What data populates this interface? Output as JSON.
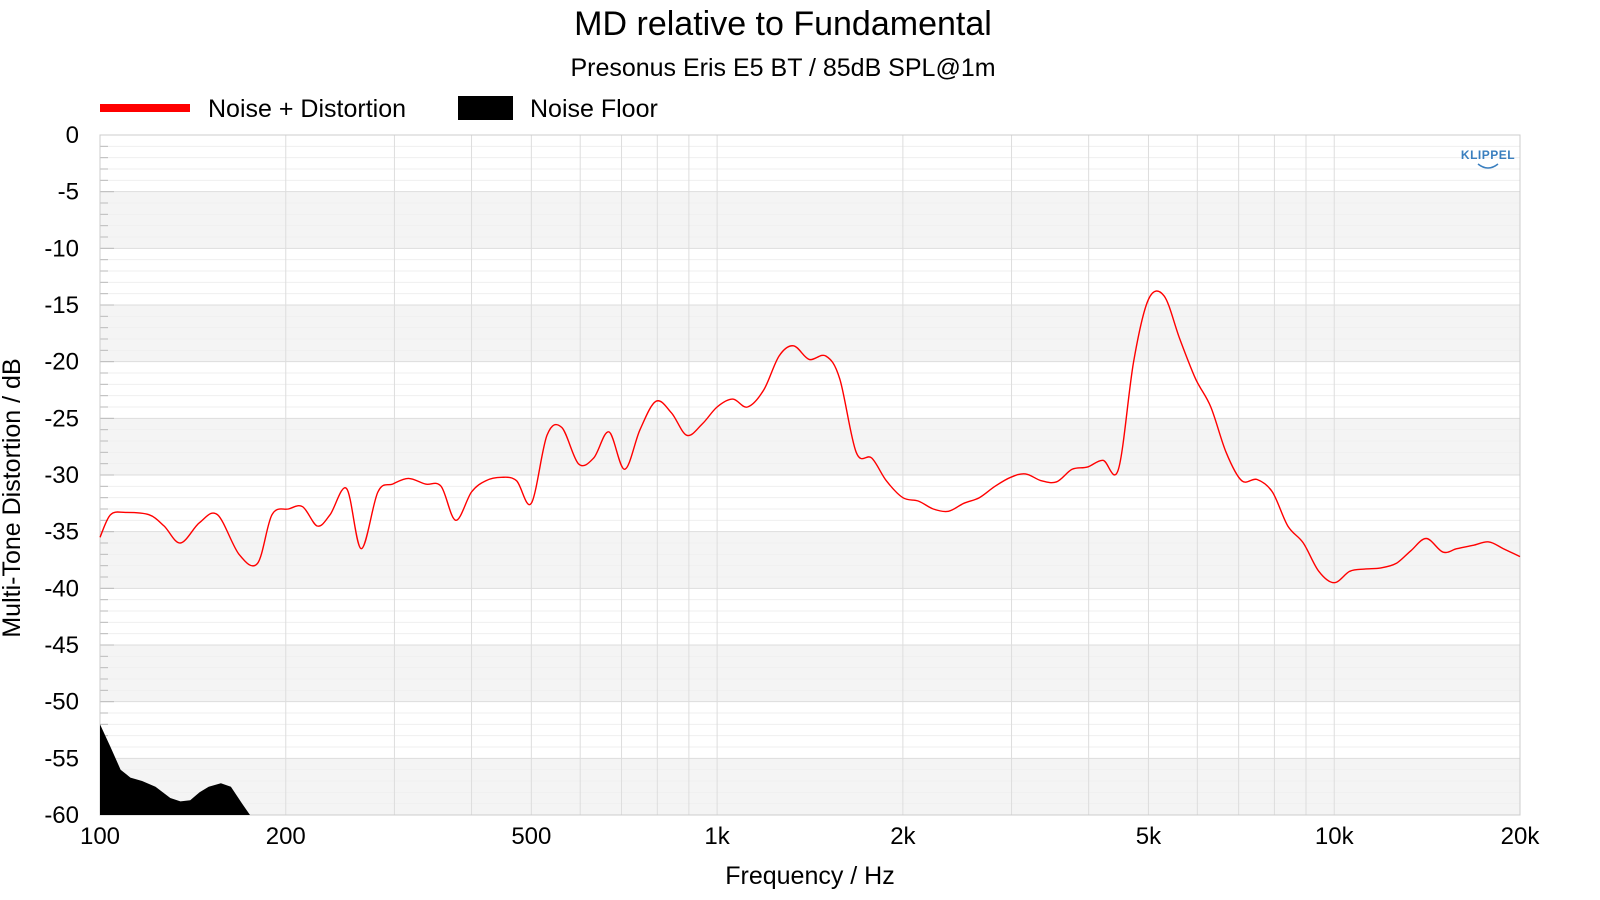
{
  "chart_data": {
    "type": "line",
    "title": "MD relative to Fundamental",
    "subtitle": "Presonus Eris E5 BT / 85dB SPL@1m",
    "xlabel": "Frequency / Hz",
    "ylabel": "Multi-Tone Distortion / dB",
    "x_scale": "log",
    "xlim": [
      100,
      20000
    ],
    "ylim": [
      -60,
      0
    ],
    "x_ticks": [
      100,
      200,
      500,
      1000,
      2000,
      5000,
      10000,
      20000
    ],
    "x_tick_labels": [
      "100",
      "200",
      "500",
      "1k",
      "2k",
      "5k",
      "10k",
      "20k"
    ],
    "y_ticks": [
      0,
      -5,
      -10,
      -15,
      -20,
      -25,
      -30,
      -35,
      -40,
      -45,
      -50,
      -55,
      -60
    ],
    "y_tick_labels": [
      "0",
      "-5",
      "-10",
      "-15",
      "-20",
      "-25",
      "-30",
      "-35",
      "-40",
      "-45",
      "-50",
      "-55",
      "-60"
    ],
    "grid": true,
    "legend_position": "top-left",
    "logo_text": "KLIPPEL",
    "colors": {
      "noise_distortion": "#ff0000",
      "noise_floor": "#000000",
      "band": "#f4f4f4",
      "grid": "#dddddd"
    },
    "series": [
      {
        "name": "Noise + Distortion",
        "type": "line",
        "x": [
          100,
          104,
          110,
          120,
          127,
          135,
          145,
          155,
          168,
          180,
          190,
          202,
          213,
          225,
          236,
          251,
          265,
          282,
          298,
          316,
          337,
          357,
          377,
          400,
          422,
          447,
          473,
          500,
          530,
          560,
          596,
          631,
          668,
          708,
          750,
          796,
          843,
          893,
          946,
          1000,
          1060,
          1120,
          1190,
          1260,
          1330,
          1410,
          1500,
          1580,
          1680,
          1780,
          1880,
          2000,
          2120,
          2240,
          2370,
          2510,
          2660,
          2820,
          2990,
          3160,
          3350,
          3550,
          3760,
          3980,
          4220,
          4470,
          4730,
          5000,
          5300,
          5620,
          5960,
          6310,
          6680,
          7080,
          7500,
          7940,
          8410,
          8910,
          9440,
          10000,
          10600,
          11200,
          11900,
          12600,
          13300,
          14100,
          15000,
          15800,
          16800,
          17800,
          18800,
          20000
        ],
        "y": [
          -35.5,
          -33.5,
          -33.3,
          -33.5,
          -34.5,
          -36,
          -34.2,
          -33.5,
          -37,
          -37.8,
          -33.5,
          -33,
          -32.8,
          -34.5,
          -33.5,
          -31.2,
          -36.5,
          -31.5,
          -30.8,
          -30.3,
          -30.8,
          -31,
          -34,
          -31.5,
          -30.5,
          -30.2,
          -30.5,
          -32.5,
          -26.5,
          -25.8,
          -29,
          -28.5,
          -26.2,
          -29.5,
          -26,
          -23.5,
          -24.5,
          -26.5,
          -25.5,
          -24,
          -23.3,
          -24,
          -22.5,
          -19.5,
          -18.6,
          -19.8,
          -19.5,
          -21.5,
          -28,
          -28.5,
          -30.5,
          -32,
          -32.3,
          -33,
          -33.2,
          -32.5,
          -32,
          -31,
          -30.2,
          -29.9,
          -30.5,
          -30.6,
          -29.5,
          -29.3,
          -28.7,
          -29.5,
          -20,
          -14.5,
          -14.2,
          -18,
          -21.5,
          -24,
          -28,
          -30.5,
          -30.4,
          -31.5,
          -34.5,
          -36,
          -38.5,
          -39.5,
          -38.5,
          -38.3,
          -38.2,
          -37.8,
          -36.7,
          -35.6,
          -36.8,
          -36.5,
          -36.2,
          -35.9,
          -36.5,
          -37.2
        ]
      },
      {
        "name": "Noise Floor",
        "type": "area",
        "x": [
          100,
          104,
          108,
          112,
          117,
          123,
          130,
          135,
          140,
          145,
          150,
          157,
          163,
          170,
          175,
          182
        ],
        "y": [
          -52,
          -54,
          -56,
          -56.7,
          -57,
          -57.5,
          -58.5,
          -58.8,
          -58.7,
          -58,
          -57.5,
          -57.2,
          -57.5,
          -59,
          -60,
          -60
        ]
      }
    ]
  }
}
